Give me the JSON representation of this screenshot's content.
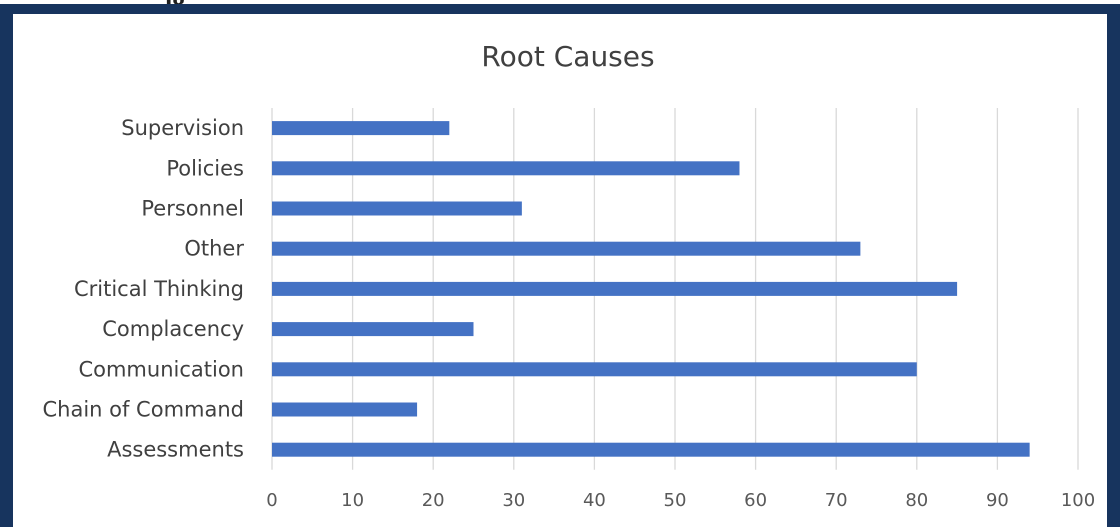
{
  "figure": {
    "caption_fragment": "ig"
  },
  "chart_data": {
    "type": "bar",
    "orientation": "horizontal",
    "title": "Root Causes",
    "categories": [
      "Supervision",
      "Policies",
      "Personnel",
      "Other",
      "Critical Thinking",
      "Complacency",
      "Communication",
      "Chain of Command",
      "Assessments"
    ],
    "series": [
      {
        "values": [
          22,
          58,
          31,
          73,
          85,
          25,
          80,
          18,
          94
        ]
      }
    ],
    "xlim": [
      0,
      100
    ],
    "xticks": [
      0,
      10,
      20,
      30,
      40,
      50,
      60,
      70,
      80,
      90,
      100
    ],
    "xlabel": "",
    "ylabel": "",
    "grid": true,
    "legend": "none",
    "bar_color": "#4472c4",
    "grid_color": "#d9d9d9",
    "frame_color": "#17345e"
  }
}
